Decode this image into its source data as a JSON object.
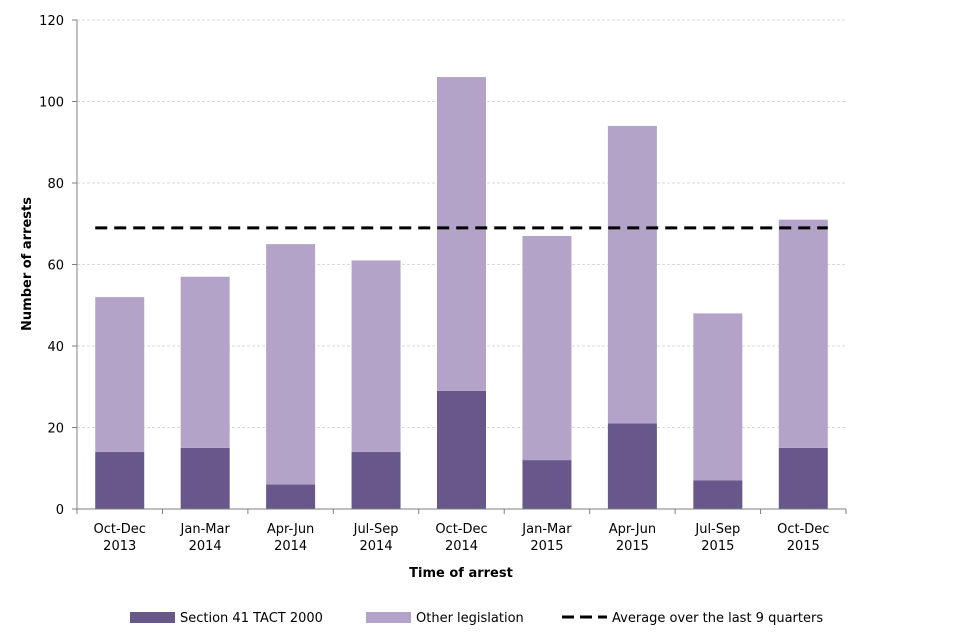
{
  "chart_data": {
    "type": "bar",
    "stacked": true,
    "categories": [
      [
        "Oct-Dec",
        "2013"
      ],
      [
        "Jan-Mar",
        "2014"
      ],
      [
        "Apr-Jun",
        "2014"
      ],
      [
        "Jul-Sep",
        "2014"
      ],
      [
        "Oct-Dec",
        "2014"
      ],
      [
        "Jan-Mar",
        "2015"
      ],
      [
        "Apr-Jun",
        "2015"
      ],
      [
        "Jul-Sep",
        "2015"
      ],
      [
        "Oct-Dec",
        "2015"
      ]
    ],
    "series": [
      {
        "name": "Section 41 TACT 2000",
        "color": "#67578a",
        "values": [
          14,
          15,
          6,
          14,
          29,
          12,
          21,
          7,
          15
        ]
      },
      {
        "name": "Other legislation",
        "color": "#b3a3c8",
        "values": [
          38,
          42,
          59,
          47,
          77,
          55,
          73,
          41,
          56
        ]
      }
    ],
    "average": {
      "name": "Average over the last 9 quarters",
      "value": 69,
      "color": "#000000"
    },
    "xlabel": "Time of arrest",
    "ylabel": "Number of arrests",
    "ylim": [
      0,
      120
    ],
    "yticks": [
      0,
      20,
      40,
      60,
      80,
      100,
      120
    ],
    "grid": true,
    "legend": "bottom"
  }
}
